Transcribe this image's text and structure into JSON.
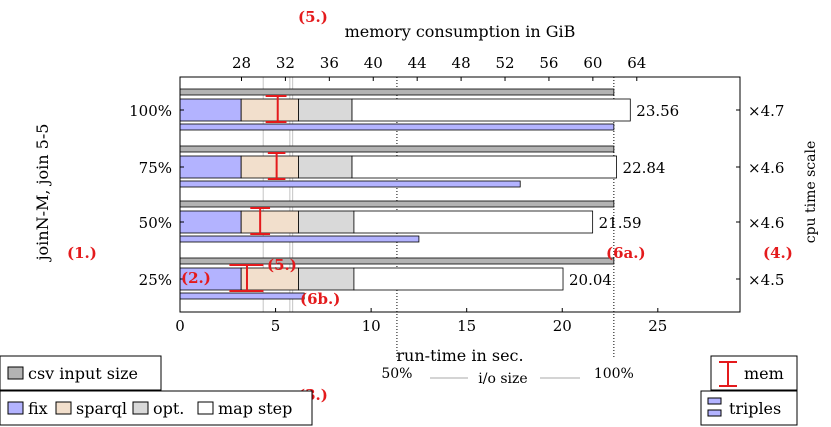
{
  "chart_data": {
    "type": "bar",
    "orientation": "horizontal",
    "stacked": true,
    "title": "",
    "ylabel": "joinN-M, join 5-5",
    "xlabel": "run-time in sec.",
    "x2label": "memory consumption in GiB",
    "y2label": "cpu time scale",
    "xlim": [
      0,
      29.3
    ],
    "xticks": [
      0,
      5,
      10,
      15,
      20,
      25
    ],
    "x2lim": [
      22.4,
      73.4
    ],
    "x2ticks": [
      28,
      32,
      36,
      40,
      44,
      48,
      52,
      56,
      60,
      64
    ],
    "categories": [
      "100%",
      "75%",
      "50%",
      "25%"
    ],
    "series": [
      {
        "name": "fix",
        "color": "#b3b3ff",
        "values": [
          3.2,
          3.2,
          3.2,
          3.2
        ]
      },
      {
        "name": "sparql",
        "color": "#f2dfcc",
        "values": [
          3.0,
          3.0,
          3.0,
          3.0
        ]
      },
      {
        "name": "opt.",
        "color": "#d9d9d9",
        "values": [
          2.8,
          2.8,
          2.9,
          2.9
        ]
      },
      {
        "name": "map step",
        "color": "#ffffff",
        "values": [
          14.56,
          13.84,
          12.49,
          10.94
        ]
      }
    ],
    "totals": [
      23.56,
      22.84,
      21.59,
      20.04
    ],
    "total_labels": [
      "23.56",
      "22.84",
      "21.59",
      "20.04"
    ],
    "csv_input_size": {
      "name": "csv input size",
      "color": "#b3b3b3",
      "values": [
        22.7,
        22.7,
        22.7,
        22.7
      ]
    },
    "triples": {
      "name": "triples",
      "color": "#b3b3ff",
      "values": [
        22.7,
        17.8,
        12.5,
        6.5
      ]
    },
    "mem": {
      "name": "mem",
      "color": "#e41a1c",
      "center": [
        31.3,
        31.2,
        29.7,
        28.5
      ],
      "low": [
        30.2,
        30.4,
        28.8,
        26.9
      ],
      "high": [
        32.1,
        32.0,
        30.6,
        30.0
      ]
    },
    "cpu_scale": [
      "×4.7",
      "×4.6",
      "×4.6",
      "×4.5"
    ],
    "io_size": {
      "label": "i/o size",
      "marks": [
        {
          "label": "50%",
          "value": 11.35
        },
        {
          "label": "100%",
          "value": 22.7
        }
      ]
    },
    "reference_lines": [
      4.35,
      5.75,
      5.9
    ],
    "annotations": [
      "(1.)",
      "(2.)",
      "(3.)",
      "(4.)",
      "(5.)",
      "(5.)",
      "(6a.)",
      "(6b.)"
    ],
    "legend": {
      "csv": "csv input size",
      "items": [
        "fix",
        "sparql",
        "opt.",
        "map step"
      ],
      "mem": "mem",
      "triples": "triples"
    }
  }
}
